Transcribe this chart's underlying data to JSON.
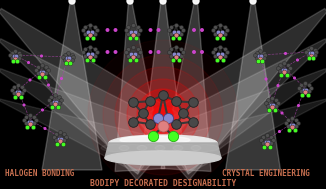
{
  "background_color": "#000000",
  "title_text": "BODIPY DECORATED DESIGNABILITY",
  "title_color": "#c87050",
  "title_fontsize": 5.8,
  "label_left": "HALOGEN BONDING",
  "label_right": "CRYSTAL ENGINEERING",
  "label_color": "#c87050",
  "label_fontsize": 5.5,
  "fig_width": 3.26,
  "fig_height": 1.89,
  "dpi": 100,
  "spotlight_alpha": 0.18,
  "glow_color": "#cc0000"
}
